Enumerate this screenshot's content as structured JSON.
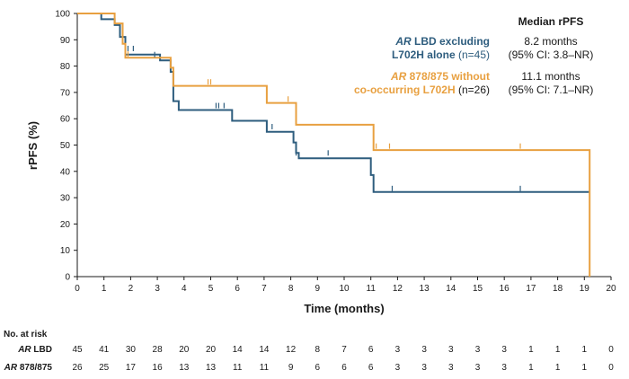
{
  "chart_data": {
    "type": "line",
    "title": "",
    "xlabel": "Time (months)",
    "ylabel": "rPFS (%)",
    "xlim": [
      0,
      20
    ],
    "ylim": [
      0,
      100
    ],
    "xticks": [
      "0",
      "1",
      "2",
      "3",
      "4",
      "5",
      "6",
      "7",
      "8",
      "9",
      "10",
      "11",
      "12",
      "13",
      "14",
      "15",
      "16",
      "17",
      "18",
      "19",
      "20"
    ],
    "yticks": [
      "0",
      "10",
      "20",
      "30",
      "40",
      "50",
      "60",
      "70",
      "80",
      "90",
      "100"
    ],
    "grid": false,
    "colors": {
      "lbd": "#2e5d7e",
      "cohort878": "#e8a040"
    },
    "legend": {
      "header": "Median rPFS",
      "placement": "top-right",
      "entries": [
        {
          "series": "lbd",
          "label_italic": "AR",
          "label_line1": " LBD excluding",
          "label_line2": "L702H alone",
          "label_n": " (n=45)",
          "median_line1": "8.2 months",
          "median_line2": "(95% CI: 3.8–NR)"
        },
        {
          "series": "cohort878",
          "label_italic": "AR",
          "label_line1": " 878/875 without",
          "label_line2": "co-occurring L702H",
          "label_n": " (n=26)",
          "median_line1": "11.1 months",
          "median_line2": "(95% CI: 7.1–NR)"
        }
      ]
    },
    "series": [
      {
        "key": "lbd",
        "steps": [
          [
            0,
            100
          ],
          [
            0.9,
            100
          ],
          [
            0.9,
            97.8
          ],
          [
            1.4,
            97.8
          ],
          [
            1.4,
            95.6
          ],
          [
            1.6,
            95.6
          ],
          [
            1.6,
            91.1
          ],
          [
            1.8,
            91.1
          ],
          [
            1.8,
            84.4
          ],
          [
            3.1,
            84.4
          ],
          [
            3.1,
            82.2
          ],
          [
            3.5,
            82.2
          ],
          [
            3.5,
            77.8
          ],
          [
            3.6,
            77.8
          ],
          [
            3.6,
            66.7
          ],
          [
            3.8,
            66.7
          ],
          [
            3.8,
            63.3
          ],
          [
            5.8,
            63.3
          ],
          [
            5.8,
            59.2
          ],
          [
            7.1,
            59.2
          ],
          [
            7.1,
            55.0
          ],
          [
            8.1,
            55.0
          ],
          [
            8.1,
            51.0
          ],
          [
            8.2,
            51.0
          ],
          [
            8.2,
            47.0
          ],
          [
            8.3,
            47.0
          ],
          [
            8.3,
            45.0
          ],
          [
            11.0,
            45.0
          ],
          [
            11.0,
            38.6
          ],
          [
            11.1,
            38.6
          ],
          [
            11.1,
            32.2
          ],
          [
            19.2,
            32.2
          ]
        ],
        "censored": [
          [
            1.9,
            86.7
          ],
          [
            2.1,
            86.7
          ],
          [
            2.9,
            84.4
          ],
          [
            5.2,
            65.0
          ],
          [
            5.3,
            65.0
          ],
          [
            5.5,
            65.0
          ],
          [
            7.3,
            57.0
          ],
          [
            8.1,
            53.0
          ],
          [
            8.2,
            47.0
          ],
          [
            9.4,
            47.0
          ],
          [
            11.8,
            33.5
          ],
          [
            16.6,
            33.5
          ]
        ]
      },
      {
        "key": "cohort878",
        "steps": [
          [
            0,
            100
          ],
          [
            1.4,
            100
          ],
          [
            1.4,
            96.2
          ],
          [
            1.7,
            96.2
          ],
          [
            1.7,
            88.5
          ],
          [
            1.8,
            88.5
          ],
          [
            1.8,
            83.2
          ],
          [
            3.5,
            83.2
          ],
          [
            3.5,
            79.4
          ],
          [
            3.6,
            79.4
          ],
          [
            3.6,
            72.5
          ],
          [
            7.1,
            72.5
          ],
          [
            7.1,
            66.0
          ],
          [
            8.2,
            66.0
          ],
          [
            8.2,
            57.7
          ],
          [
            11.1,
            57.7
          ],
          [
            11.1,
            48.1
          ],
          [
            19.2,
            48.1
          ],
          [
            19.2,
            0
          ]
        ],
        "censored": [
          [
            1.9,
            84.6
          ],
          [
            4.9,
            74.0
          ],
          [
            5.0,
            74.0
          ],
          [
            7.9,
            67.5
          ],
          [
            8.2,
            59.2
          ],
          [
            11.2,
            49.6
          ],
          [
            11.7,
            49.6
          ],
          [
            16.6,
            49.6
          ]
        ]
      }
    ],
    "at_risk": {
      "title": "No. at risk",
      "times": [
        0,
        1,
        2,
        3,
        4,
        5,
        6,
        7,
        8,
        9,
        10,
        11,
        12,
        13,
        14,
        15,
        16,
        17,
        18,
        19,
        20
      ],
      "rows": [
        {
          "series": "lbd",
          "label_italic": "AR",
          "label_rest": " LBD",
          "counts": [
            45,
            41,
            30,
            28,
            20,
            20,
            14,
            14,
            12,
            8,
            7,
            6,
            3,
            3,
            3,
            3,
            3,
            1,
            1,
            1,
            0
          ]
        },
        {
          "series": "cohort878",
          "label_italic": "AR",
          "label_rest": " 878/875",
          "counts": [
            26,
            25,
            17,
            16,
            13,
            13,
            11,
            11,
            9,
            6,
            6,
            6,
            3,
            3,
            3,
            3,
            3,
            1,
            1,
            1,
            0
          ]
        }
      ]
    }
  }
}
